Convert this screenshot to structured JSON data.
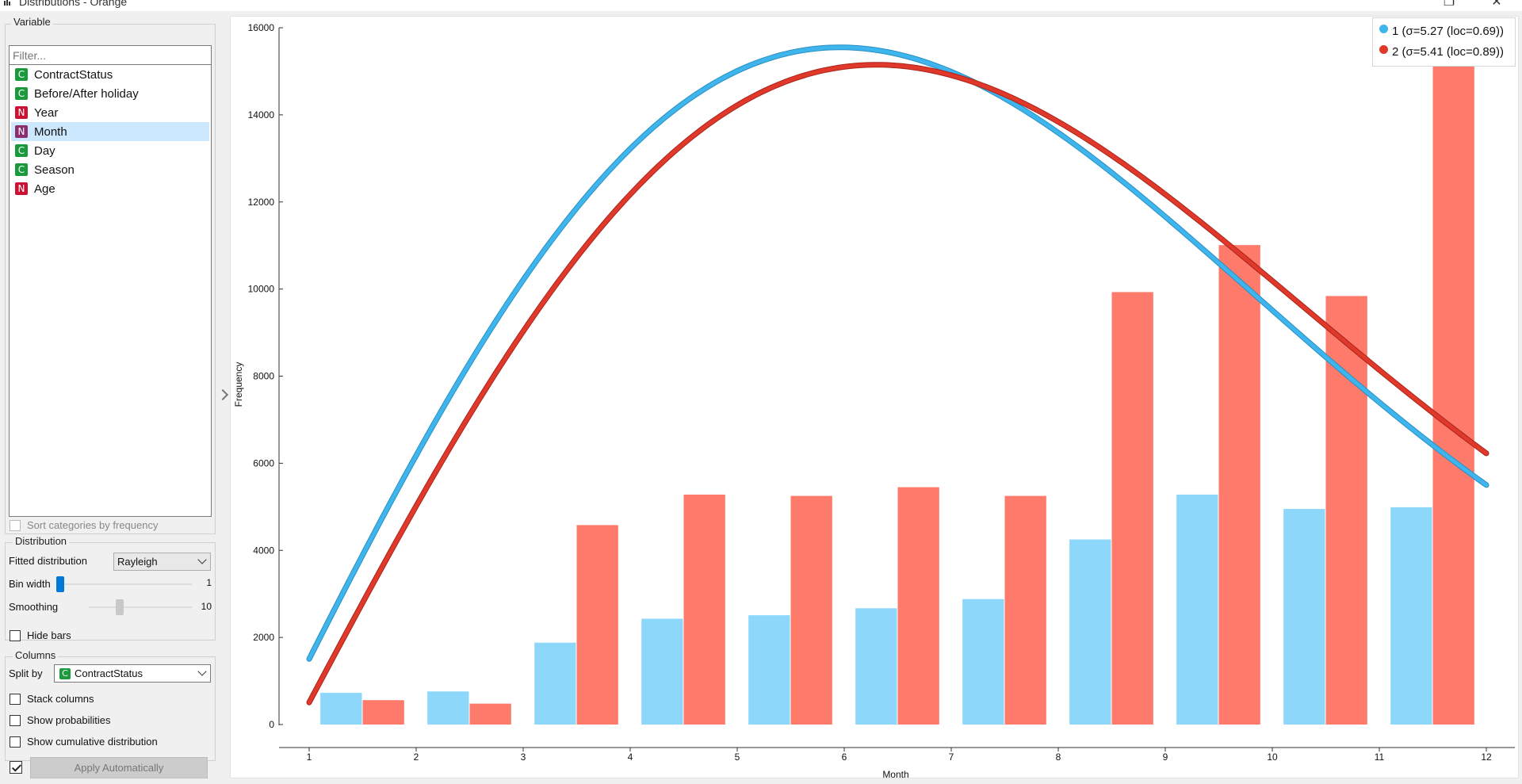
{
  "window": {
    "title": "Distributions - Orange",
    "app_icon": "bar-chart-icon"
  },
  "variable_box": {
    "title": "Variable",
    "filter_placeholder": "Filter...",
    "items": [
      {
        "label": "ContractStatus",
        "type": "C"
      },
      {
        "label": "Before/After holiday",
        "type": "C"
      },
      {
        "label": "Year",
        "type": "N"
      },
      {
        "label": "Month",
        "type": "N",
        "selected": true
      },
      {
        "label": "Day",
        "type": "C"
      },
      {
        "label": "Season",
        "type": "C"
      },
      {
        "label": "Age",
        "type": "N"
      }
    ],
    "sort_label": "Sort categories by frequency"
  },
  "distribution_box": {
    "title": "Distribution",
    "fitted_label": "Fitted distribution",
    "fitted_value": "Rayleigh",
    "bin_width_label": "Bin width",
    "bin_width_value": "1",
    "smoothing_label": "Smoothing",
    "smoothing_value": "10",
    "hide_bars_label": "Hide bars"
  },
  "columns_box": {
    "title": "Columns",
    "split_by_label": "Split by",
    "split_by_badge": "C",
    "split_by_value": "ContractStatus",
    "stack_label": "Stack columns",
    "prob_label": "Show probabilities",
    "cumulative_label": "Show cumulative distribution"
  },
  "apply_label": "Apply Automatically",
  "colors": {
    "series1_bar": "#8dd7fb",
    "series2_bar": "#fe7a6b",
    "series1_curve": "#3eb5ec",
    "series2_curve": "#e0392b",
    "selected_row": "#cce8ff"
  },
  "chart_data": {
    "type": "bar",
    "xlabel": "Month",
    "ylabel": "Frequency",
    "ylim": [
      0,
      16000
    ],
    "xlim": [
      1,
      12
    ],
    "x_ticks": [
      1,
      2,
      3,
      4,
      5,
      6,
      7,
      8,
      9,
      10,
      11,
      12
    ],
    "y_ticks": [
      0,
      2000,
      4000,
      6000,
      8000,
      10000,
      12000,
      14000,
      16000
    ],
    "bin_starts": [
      1,
      2,
      3,
      4,
      5,
      6,
      7,
      8,
      9,
      10,
      11
    ],
    "series": [
      {
        "name": "1",
        "values": [
          730,
          760,
          1880,
          2430,
          2510,
          2670,
          2880,
          4250,
          5280,
          4950,
          4990
        ]
      },
      {
        "name": "2",
        "values": [
          560,
          480,
          4580,
          5280,
          5250,
          5450,
          5250,
          9930,
          11010,
          9840,
          15720
        ]
      }
    ],
    "fitted_curves": [
      {
        "series": "1",
        "legend": "1 (σ=5.27 (loc=0.69))",
        "sigma": 5.27,
        "loc": 0.69,
        "peak_y": 15550
      },
      {
        "series": "2",
        "legend": "2 (σ=5.41 (loc=0.89))",
        "sigma": 5.41,
        "loc": 0.89,
        "peak_y": 15150
      }
    ],
    "legend_position": "top-right"
  }
}
